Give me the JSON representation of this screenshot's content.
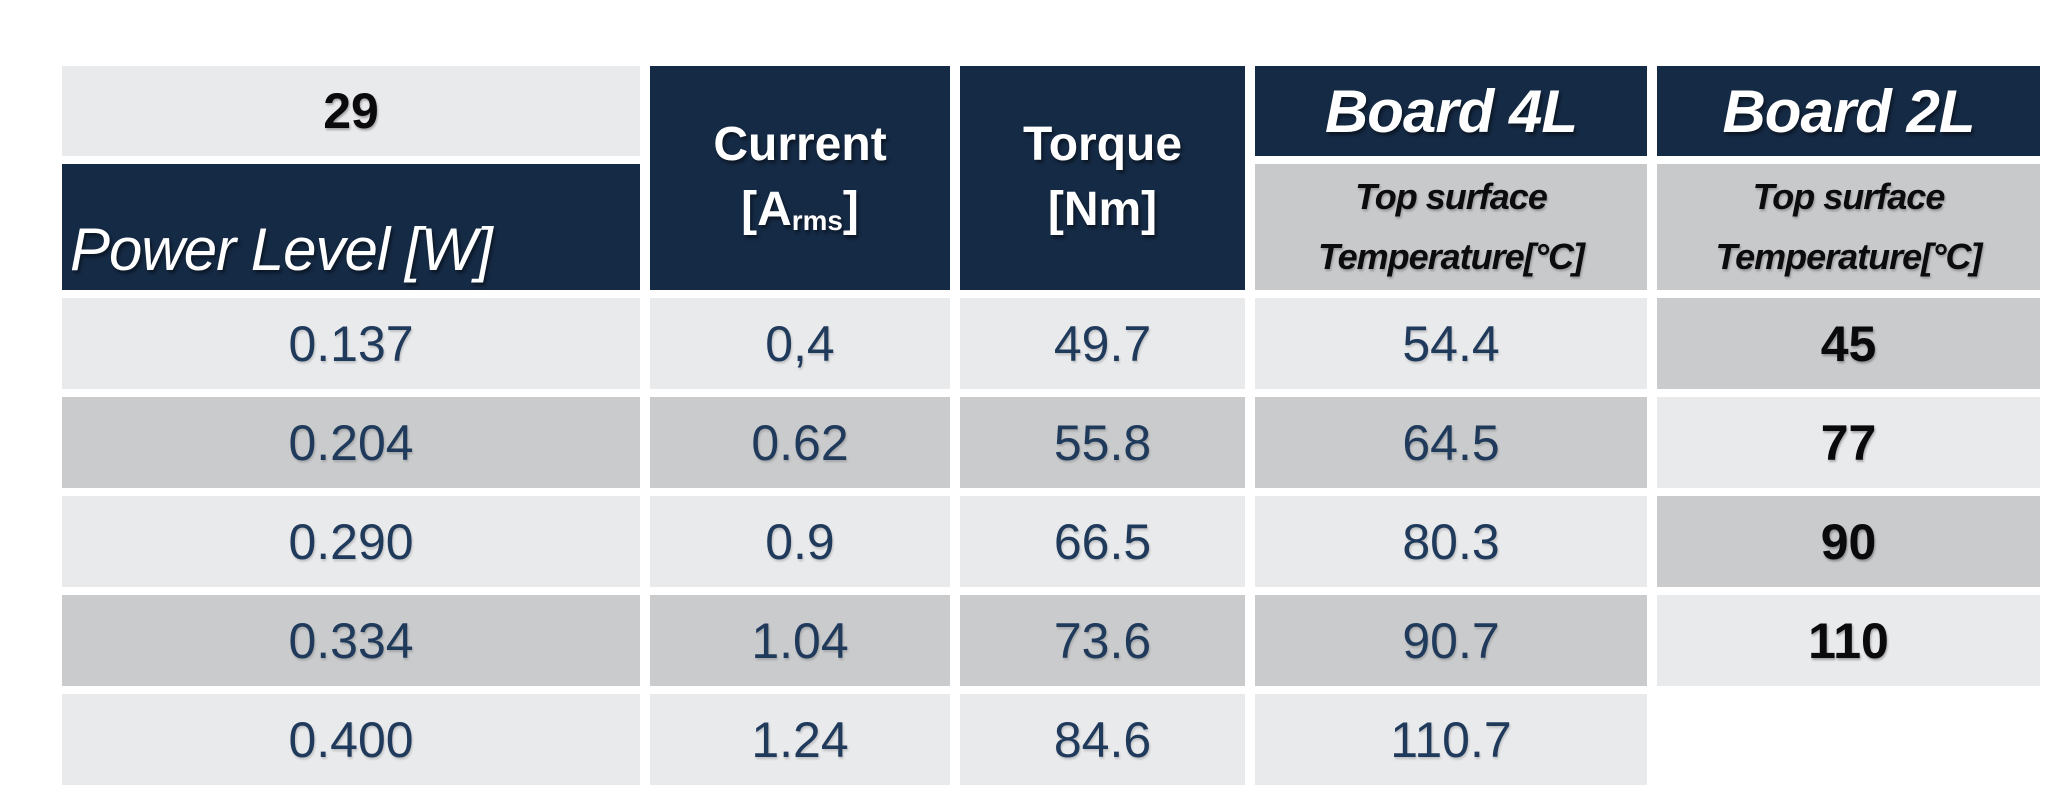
{
  "colors": {
    "header_navy": "#152a45",
    "subheader_gray": "#c7c9cb",
    "row_light": "#e9eaec",
    "row_dark": "#c9cbcd",
    "value_text_navy": "#203a5c",
    "power_value_text": "#0a0a0c",
    "header_text": "#ffffff"
  },
  "table": {
    "header": {
      "power_level": "Power Level [W]",
      "current_line1": "Current",
      "current_unit_pre": "[A",
      "current_unit_sub": "rms",
      "current_unit_post": "]",
      "torque_line1": "Torque",
      "torque_line2": "[Nm]",
      "board_4l": "Board 4L",
      "board_2l": "Board 2L",
      "board_4l_sub_line1": "Top surface",
      "board_4l_sub_line2": "Temperature[°C]",
      "board_2l_sub_line1": "Top surface",
      "board_2l_sub_line2": "Temperature[°C]"
    },
    "rows": [
      [
        "29",
        "0.137",
        "0,4",
        "49.7",
        "54.4"
      ],
      [
        "45",
        "0.204",
        "0.62",
        "55.8",
        "64.5"
      ],
      [
        "77",
        "0.290",
        "0.9",
        "66.5",
        "80.3"
      ],
      [
        "90",
        "0.334",
        "1.04",
        "73.6",
        "90.7"
      ],
      [
        "110",
        "0.400",
        "1.24",
        "84.6",
        "110.7"
      ]
    ]
  },
  "chart_data": {
    "type": "table",
    "title": "Board 4L vs Board 2L top surface temperature by power level",
    "columns": [
      "Power Level [W]",
      "Current [Arms]",
      "Torque [Nm]",
      "Board 4L Top surface Temperature[°C]",
      "Board 2L Top surface Temperature[°C]"
    ],
    "rows": [
      [
        29,
        0.137,
        0.4,
        49.7,
        54.4
      ],
      [
        45,
        0.204,
        0.62,
        55.8,
        64.5
      ],
      [
        77,
        0.29,
        0.9,
        66.5,
        80.3
      ],
      [
        90,
        0.334,
        1.04,
        73.6,
        90.7
      ],
      [
        110,
        0.4,
        1.24,
        84.6,
        110.7
      ]
    ]
  }
}
